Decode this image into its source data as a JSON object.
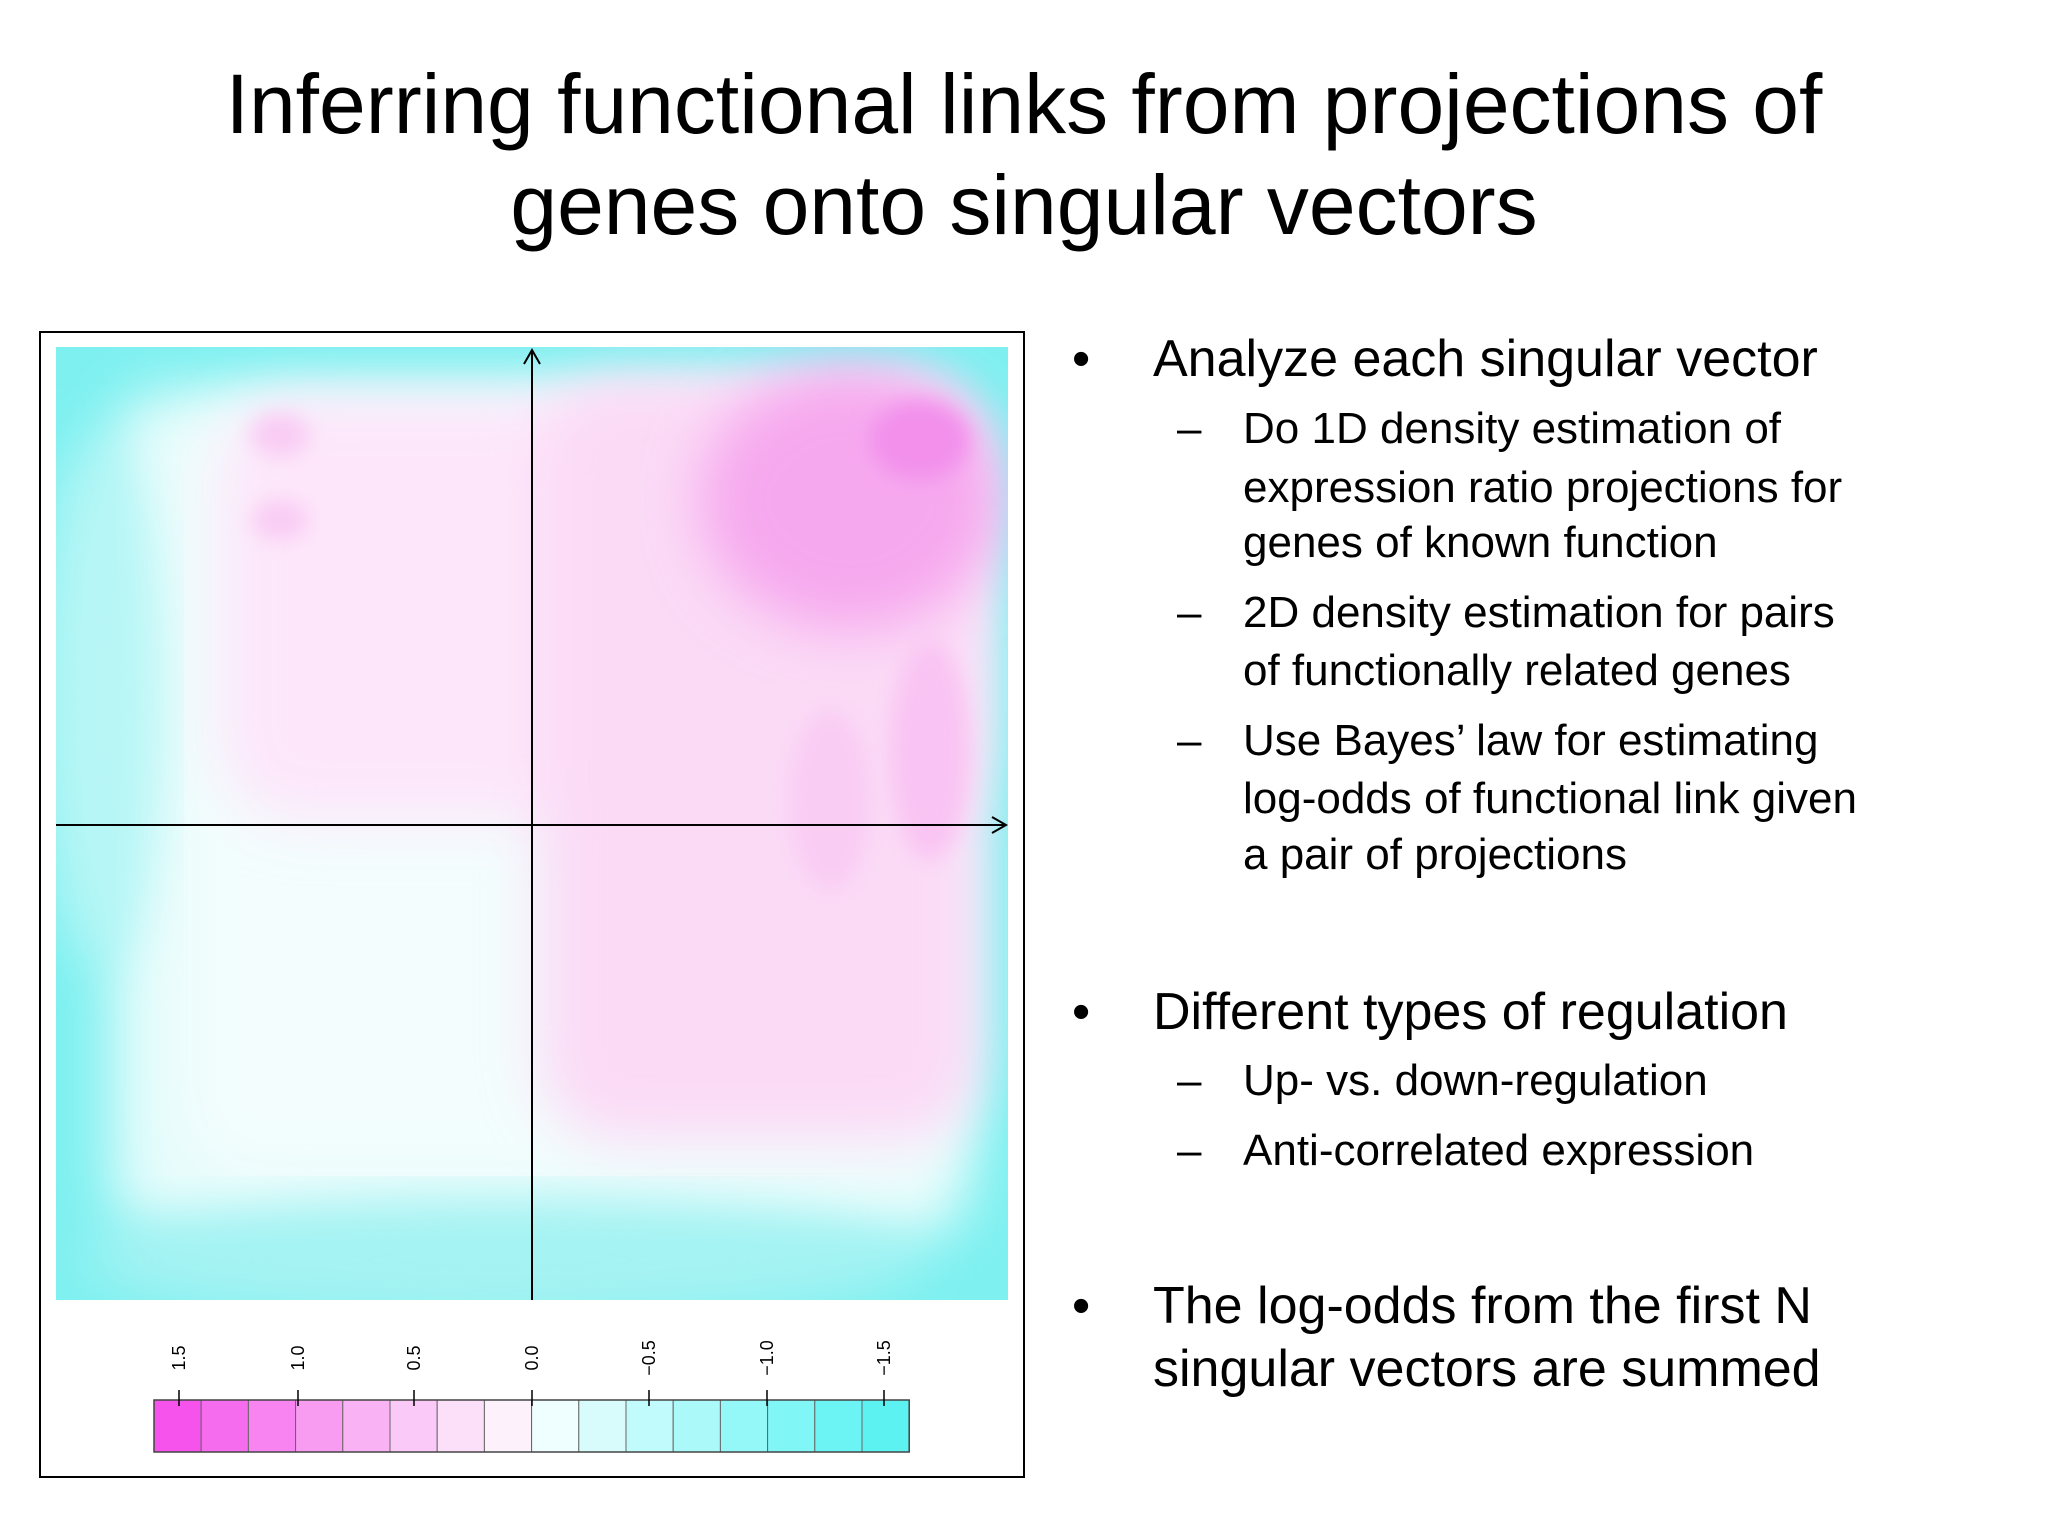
{
  "title_lines": [
    "Inferring functional links from projections of",
    "genes onto singular vectors"
  ],
  "colorbar_labels": [
    "1.5",
    "1.0",
    "0.5",
    "0.0",
    "−0.5",
    "−1.0",
    "−1.5"
  ],
  "bullets": [
    {
      "lines": [
        "Analyze each singular vector"
      ],
      "sub": [
        {
          "lines": [
            "Do 1D density estimation of",
            "expression ratio projections for",
            "genes of known function"
          ]
        },
        {
          "lines": [
            "2D density estimation for pairs",
            "of functionally related genes"
          ]
        },
        {
          "lines": [
            "Use Bayes’ law for estimating",
            "log-odds of functional link given",
            "a pair of projections"
          ]
        }
      ]
    },
    {
      "lines": [
        "Different types of regulation"
      ],
      "sub": [
        {
          "lines": [
            "Up- vs. down-regulation"
          ]
        },
        {
          "lines": [
            "Anti-correlated expression"
          ]
        }
      ]
    },
    {
      "lines": [
        "The log-odds from the first N",
        "singular vectors are summed"
      ],
      "sub": []
    }
  ]
}
